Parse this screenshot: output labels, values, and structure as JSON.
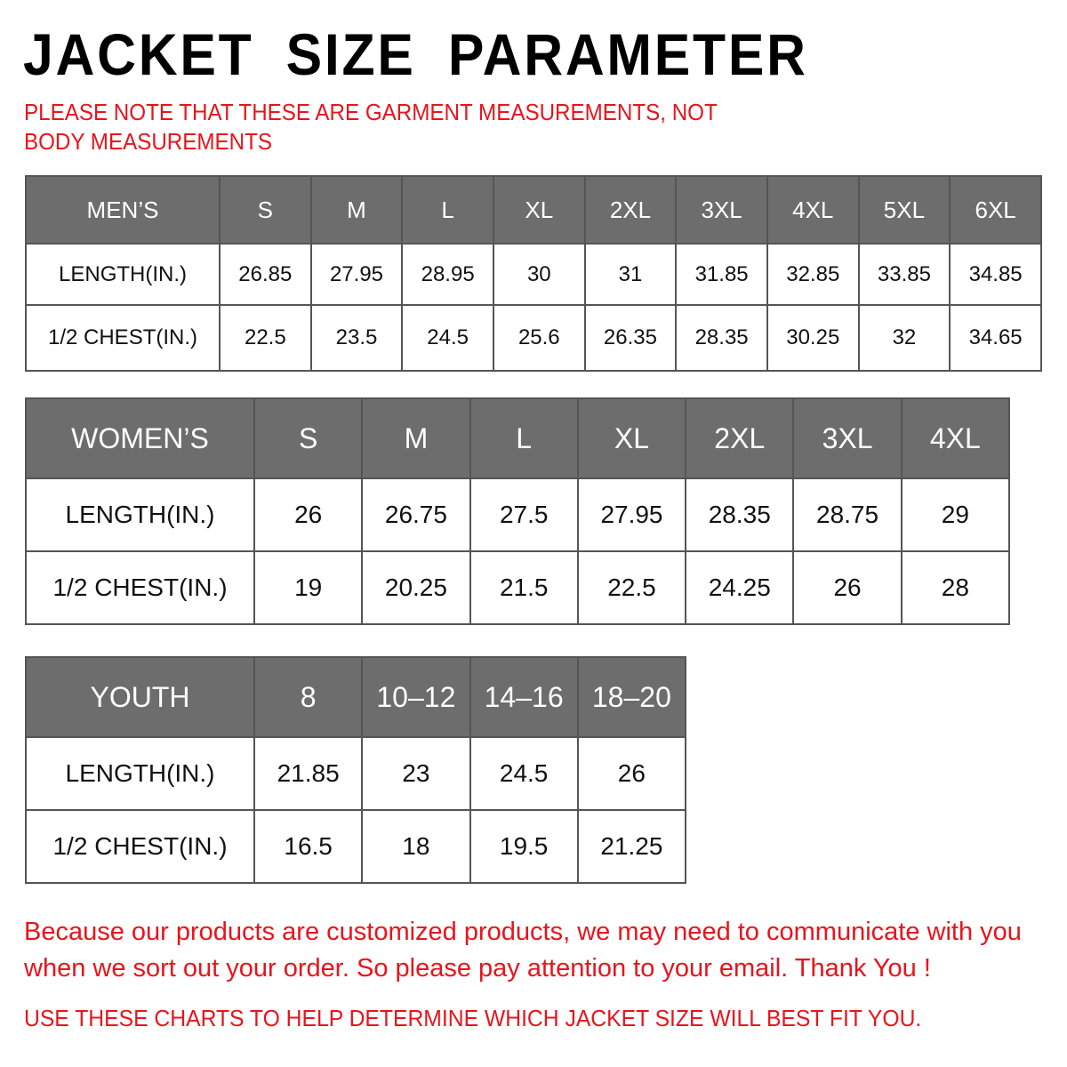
{
  "title": "JACKET SIZE PARAMETER",
  "note": "PLEASE NOTE THAT THESE ARE GARMENT MEASUREMENTS, NOT BODY MEASUREMENTS",
  "colors": {
    "header_bg": "#6d6d6d",
    "accent_red": "#e8141b"
  },
  "tables": {
    "men": {
      "header": "MEN’S",
      "sizes": [
        "S",
        "M",
        "L",
        "XL",
        "2XL",
        "3XL",
        "4XL",
        "5XL",
        "6XL"
      ],
      "rows": [
        {
          "label": "LENGTH(IN.)",
          "values": [
            "26.85",
            "27.95",
            "28.95",
            "30",
            "31",
            "31.85",
            "32.85",
            "33.85",
            "34.85"
          ]
        },
        {
          "label": "1/2 CHEST(IN.)",
          "values": [
            "22.5",
            "23.5",
            "24.5",
            "25.6",
            "26.35",
            "28.35",
            "30.25",
            "32",
            "34.65"
          ]
        }
      ]
    },
    "women": {
      "header": "WOMEN’S",
      "sizes": [
        "S",
        "M",
        "L",
        "XL",
        "2XL",
        "3XL",
        "4XL"
      ],
      "rows": [
        {
          "label": "LENGTH(IN.)",
          "values": [
            "26",
            "26.75",
            "27.5",
            "27.95",
            "28.35",
            "28.75",
            "29"
          ]
        },
        {
          "label": "1/2 CHEST(IN.)",
          "values": [
            "19",
            "20.25",
            "21.5",
            "22.5",
            "24.25",
            "26",
            "28"
          ]
        }
      ]
    },
    "youth": {
      "header": "YOUTH",
      "sizes": [
        "8",
        "10–12",
        "14–16",
        "18–20"
      ],
      "rows": [
        {
          "label": "LENGTH(IN.)",
          "values": [
            "21.85",
            "23",
            "24.5",
            "26"
          ]
        },
        {
          "label": "1/2 CHEST(IN.)",
          "values": [
            "16.5",
            "18",
            "19.5",
            "21.25"
          ]
        }
      ]
    }
  },
  "footer": {
    "message": "Because our products are customized products, we may need to communicate with you when we sort out your order. So please pay attention to your email. Thank You !",
    "instruction": "USE THESE CHARTS TO HELP DETERMINE WHICH JACKET SIZE WILL BEST FIT YOU."
  }
}
